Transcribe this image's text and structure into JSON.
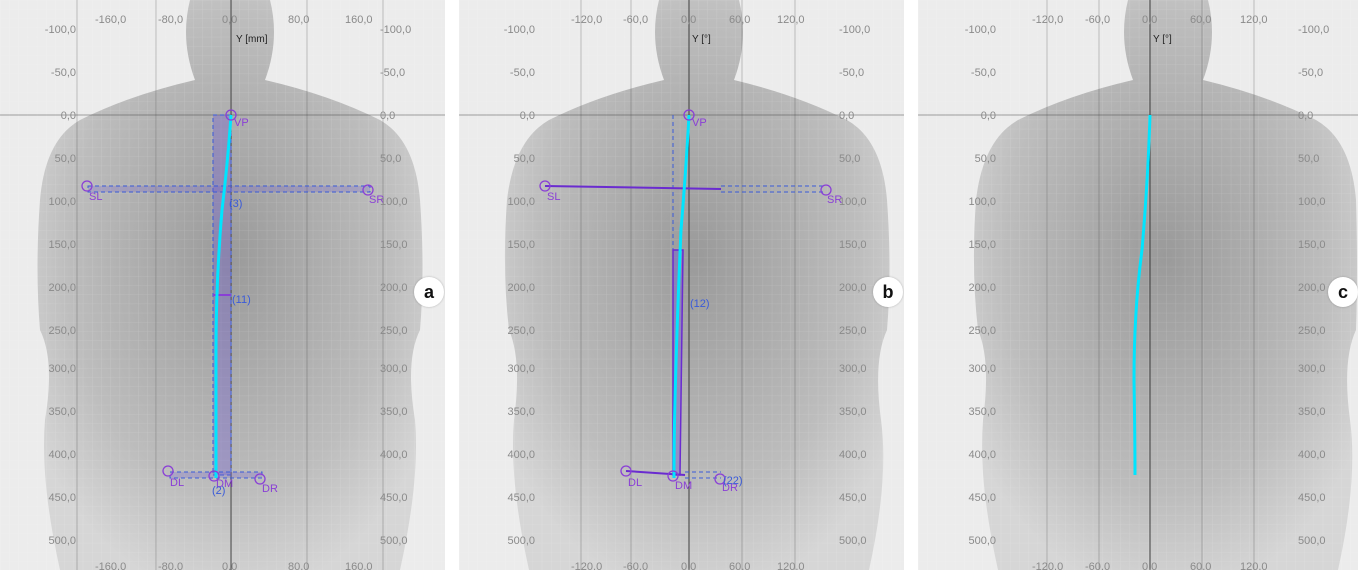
{
  "panels": [
    {
      "id": "a",
      "badge": "a",
      "axis_label": "Y [mm]",
      "x_ticks": [
        "-160,0",
        "-80,0",
        "0,0",
        "80,0",
        "160,0"
      ],
      "y_ticks": [
        "-100,0",
        "-50,0",
        "0,0",
        "50,0",
        "100,0",
        "150,0",
        "200,0",
        "250,0",
        "300,0",
        "350,0",
        "400,0",
        "450,0",
        "500,0"
      ],
      "landmarks": {
        "vp": "VP",
        "sl": "SL",
        "sr": "SR",
        "dl": "DL",
        "dm": "DM",
        "dr": "DR"
      },
      "segment_labels": [
        "(3)",
        "(11)",
        "(2)"
      ]
    },
    {
      "id": "b",
      "badge": "b",
      "axis_label": "Y [°]",
      "x_ticks": [
        "-120,0",
        "-60,0",
        "0,0",
        "60,0",
        "120,0"
      ],
      "y_ticks": [
        "-100,0",
        "-50,0",
        "0,0",
        "50,0",
        "100,0",
        "150,0",
        "200,0",
        "250,0",
        "300,0",
        "350,0",
        "400,0",
        "450,0",
        "500,0"
      ],
      "landmarks": {
        "vp": "VP",
        "sl": "SL",
        "sr": "SR",
        "dl": "DL",
        "dm": "DM",
        "dr": "DR"
      },
      "segment_labels": [
        "(12)",
        "(22)"
      ]
    },
    {
      "id": "c",
      "badge": "c",
      "axis_label": "Y [°]",
      "x_ticks": [
        "-120,0",
        "-60,0",
        "0,0",
        "60,0",
        "120,0"
      ],
      "y_ticks": [
        "-100,0",
        "-50,0",
        "0,0",
        "50,0",
        "100,0",
        "150,0",
        "200,0",
        "250,0",
        "300,0",
        "350,0",
        "400,0",
        "450,0",
        "500,0"
      ]
    }
  ],
  "colors": {
    "spine_line": "#00e5ff",
    "landmark": "#8a3fd6",
    "measure_dashed": "#3a5bd9",
    "background": "#e9e9e9"
  }
}
